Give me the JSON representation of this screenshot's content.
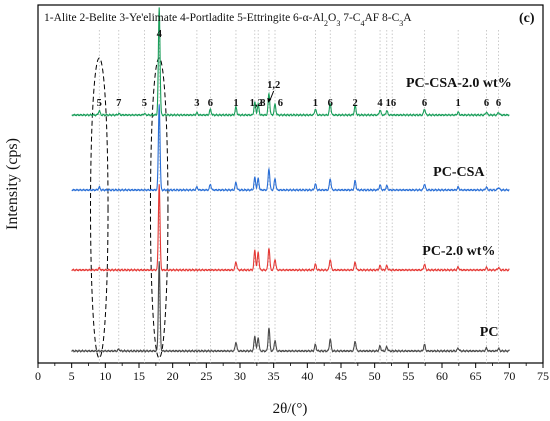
{
  "chart_data": {
    "type": "line",
    "panel_label": "(c)",
    "phase_legend": [
      {
        "text": "1-Alite 2-Belite 3-Ye'elimate 4-Portladite 5-Ettringite 6-α-Al"
      },
      {
        "text": "2",
        "sub": true
      },
      {
        "text": "O"
      },
      {
        "text": "3",
        "sub": true
      },
      {
        "text": " 7-C"
      },
      {
        "text": "4",
        "sub": true
      },
      {
        "text": "AF 8-C"
      },
      {
        "text": "3",
        "sub": true
      },
      {
        "text": "A"
      }
    ],
    "xlabel": "2θ/(°)",
    "ylabel": "Intensity (cps)",
    "xlim": [
      0,
      75
    ],
    "xticks": [
      "0",
      "5",
      "10",
      "15",
      "20",
      "25",
      "30",
      "35",
      "40",
      "45",
      "50",
      "55",
      "60",
      "65",
      "70",
      "75"
    ],
    "show_y_ticks": false,
    "grid": "dotted vertical lines at major reflections",
    "reference_lines": [
      9.1,
      12.0,
      15.8,
      18.0,
      23.6,
      25.6,
      29.4,
      32.2,
      32.7,
      34.3,
      35.2,
      41.2,
      43.4,
      47.1,
      50.8,
      51.8,
      52.6,
      57.4,
      62.4,
      66.6,
      68.4
    ],
    "ellipses": [
      {
        "x_center": 9.1,
        "x_halfwidth": 1.3
      },
      {
        "x_center": 18.0,
        "x_halfwidth": 1.3
      }
    ],
    "series": [
      {
        "name": "PC-CSA-2.0 wt%",
        "color": "#1a9e5a",
        "baseline_offset": 3,
        "peaks": [
          [
            9.1,
            0.012
          ],
          [
            12.0,
            0.004
          ],
          [
            15.8,
            0.004
          ],
          [
            18.0,
            0.3
          ],
          [
            23.6,
            0.006
          ],
          [
            25.6,
            0.016
          ],
          [
            29.4,
            0.022
          ],
          [
            32.2,
            0.035
          ],
          [
            32.7,
            0.03
          ],
          [
            34.3,
            0.06
          ],
          [
            35.2,
            0.03
          ],
          [
            41.2,
            0.017
          ],
          [
            43.4,
            0.032
          ],
          [
            47.1,
            0.026
          ],
          [
            50.8,
            0.014
          ],
          [
            51.8,
            0.012
          ],
          [
            57.4,
            0.017
          ],
          [
            62.4,
            0.008
          ],
          [
            66.6,
            0.008
          ],
          [
            68.4,
            0.007
          ]
        ]
      },
      {
        "name": "PC-CSA",
        "color": "#2a6fd6",
        "baseline_offset": 2,
        "peaks": [
          [
            9.1,
            0.008
          ],
          [
            18.0,
            0.24
          ],
          [
            23.6,
            0.008
          ],
          [
            25.6,
            0.016
          ],
          [
            29.4,
            0.021
          ],
          [
            32.2,
            0.035
          ],
          [
            32.7,
            0.032
          ],
          [
            34.3,
            0.06
          ],
          [
            35.2,
            0.032
          ],
          [
            41.2,
            0.017
          ],
          [
            43.4,
            0.032
          ],
          [
            47.1,
            0.026
          ],
          [
            50.8,
            0.014
          ],
          [
            51.8,
            0.012
          ],
          [
            57.4,
            0.017
          ],
          [
            62.4,
            0.008
          ],
          [
            66.6,
            0.008
          ],
          [
            68.4,
            0.007
          ]
        ]
      },
      {
        "name": "PC-2.0 wt%",
        "color": "#e53935",
        "baseline_offset": 1,
        "peaks": [
          [
            9.1,
            0.006
          ],
          [
            18.0,
            0.24
          ],
          [
            29.4,
            0.023
          ],
          [
            32.2,
            0.055
          ],
          [
            32.7,
            0.05
          ],
          [
            34.3,
            0.062
          ],
          [
            35.2,
            0.03
          ],
          [
            41.2,
            0.016
          ],
          [
            43.4,
            0.03
          ],
          [
            47.1,
            0.022
          ],
          [
            50.8,
            0.012
          ],
          [
            51.8,
            0.012
          ],
          [
            57.4,
            0.016
          ],
          [
            62.4,
            0.008
          ],
          [
            66.6,
            0.007
          ],
          [
            68.4,
            0.007
          ]
        ]
      },
      {
        "name": "PC",
        "color": "#4a4a4a",
        "baseline_offset": 0,
        "peaks": [
          [
            12.0,
            0.005
          ],
          [
            18.0,
            0.25
          ],
          [
            29.4,
            0.025
          ],
          [
            32.2,
            0.042
          ],
          [
            32.7,
            0.038
          ],
          [
            34.3,
            0.065
          ],
          [
            35.2,
            0.03
          ],
          [
            41.2,
            0.018
          ],
          [
            43.4,
            0.034
          ],
          [
            47.1,
            0.028
          ],
          [
            50.8,
            0.014
          ],
          [
            51.8,
            0.012
          ],
          [
            57.4,
            0.018
          ],
          [
            62.4,
            0.008
          ],
          [
            66.6,
            0.008
          ],
          [
            68.4,
            0.007
          ]
        ]
      }
    ],
    "peak_labels": [
      {
        "label": "5",
        "x": 9.1
      },
      {
        "label": "7",
        "x": 12.0
      },
      {
        "label": "5",
        "x": 15.8
      },
      {
        "label": "4",
        "x": 18.0
      },
      {
        "label": "3",
        "x": 23.6
      },
      {
        "label": "6",
        "x": 25.6
      },
      {
        "label": "1",
        "x": 29.4
      },
      {
        "label": "1,2",
        "x": 32.4
      },
      {
        "label": "8",
        "x": 33.4
      },
      {
        "label": "1,2",
        "x": 35.0
      },
      {
        "label": "6",
        "x": 36.0
      },
      {
        "label": "1",
        "x": 41.2
      },
      {
        "label": "6",
        "x": 43.4
      },
      {
        "label": "2",
        "x": 47.1
      },
      {
        "label": "4",
        "x": 50.8
      },
      {
        "label": "16",
        "x": 52.4
      },
      {
        "label": "6",
        "x": 57.4
      },
      {
        "label": "1",
        "x": 62.4
      },
      {
        "label": "6",
        "x": 66.6
      },
      {
        "label": "6",
        "x": 68.4
      }
    ]
  }
}
